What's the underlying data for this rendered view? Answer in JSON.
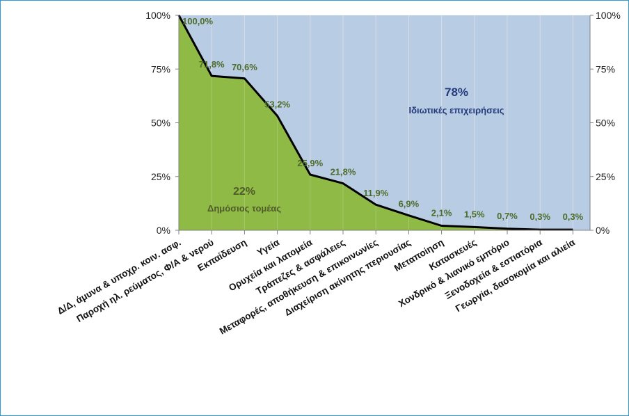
{
  "chart_data": {
    "type": "area",
    "categories": [
      "Δ/Δ, άμυνα & υποχρ. κοιν. ασφ.",
      "Παροχή ηλ. ρεύματος, Φ/Α & νερού",
      "Εκπαίδευση",
      "Υγεία",
      "Ορυχεία και λατομεία",
      "Τράπεζες & ασφάλειες",
      "Μεταφορές, αποθήκευση & επικοινωνίες",
      "Διαχείριση ακίνητης περιουσίας",
      "Μεταποίηση",
      "Κατασκευές",
      "Χονδρικό & λιανικό εμπόριο",
      "Ξενοδοχεία & εστιατόρια",
      "Γεωργία, δασοκομία και αλιεία"
    ],
    "series": [
      {
        "values": [
          100.0,
          71.8,
          70.6,
          53.2,
          25.9,
          21.8,
          11.9,
          6.9,
          2.1,
          1.5,
          0.7,
          0.3,
          0.3
        ]
      }
    ],
    "data_labels": [
      "100,0%",
      "71,8%",
      "70,6%",
      "53,2%",
      "25,9%",
      "21,8%",
      "11,9%",
      "6,9%",
      "2,1%",
      "1,5%",
      "0,7%",
      "0,3%",
      "0,3%"
    ],
    "ylim": [
      0,
      100
    ],
    "yticks": [
      "0%",
      "25%",
      "50%",
      "75%",
      "100%"
    ],
    "secondary_yticks": [
      "0%",
      "25%",
      "50%",
      "75%",
      "100%"
    ],
    "annotations": {
      "public_pct": "22%",
      "public_label": "Δημόσιος τομέας",
      "private_pct": "78%",
      "private_label": "Ιδιωτικές επιχειρήσεις"
    },
    "colors": {
      "public_fill": "#8fba45",
      "private_fill": "#b8cce4",
      "line": "#000000",
      "border": "#2f9bd6"
    }
  }
}
